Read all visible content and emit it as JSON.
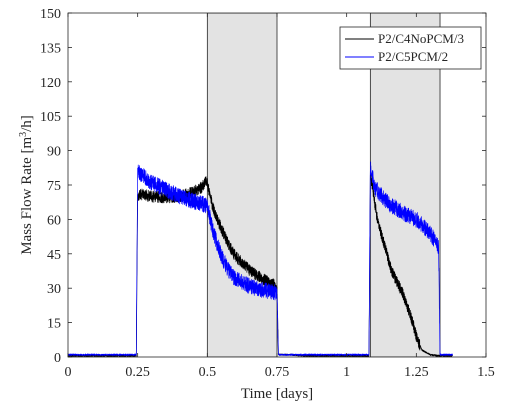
{
  "chart_data": {
    "type": "line",
    "title": "",
    "xlabel": "Time [days]",
    "ylabel_main": "Mass Flow Rate [m",
    "ylabel_sup": "3",
    "ylabel_end": "/h]",
    "xlim": [
      0,
      1.5
    ],
    "ylim": [
      0,
      150
    ],
    "x_ticks": [
      0,
      0.25,
      0.5,
      0.75,
      1,
      1.25,
      1.5
    ],
    "x_tick_labels": [
      "0",
      "0.25",
      "0.5",
      "0.75",
      "1",
      "1.25",
      "1.5"
    ],
    "y_ticks": [
      0,
      15,
      30,
      45,
      60,
      75,
      90,
      105,
      120,
      135,
      150
    ],
    "y_tick_labels": [
      "0",
      "15",
      "30",
      "45",
      "60",
      "75",
      "90",
      "105",
      "120",
      "135",
      "150"
    ],
    "grid": false,
    "legend_position": "top-right",
    "shaded_periods": [
      {
        "start": 0.5,
        "end": 0.75,
        "color": "#e3e3e3"
      },
      {
        "start": 1.085,
        "end": 1.335,
        "color": "#e3e3e3"
      }
    ],
    "series": [
      {
        "name": "P2/C4NoPCM/3",
        "color": "#000000",
        "noise": 2.5,
        "points": [
          [
            0,
            0.5
          ],
          [
            0.245,
            0.5
          ],
          [
            0.25,
            70
          ],
          [
            0.26,
            71
          ],
          [
            0.3,
            70
          ],
          [
            0.35,
            69.5
          ],
          [
            0.4,
            70
          ],
          [
            0.45,
            72
          ],
          [
            0.48,
            74
          ],
          [
            0.495,
            77
          ],
          [
            0.5,
            76
          ],
          [
            0.52,
            65
          ],
          [
            0.55,
            56
          ],
          [
            0.58,
            48
          ],
          [
            0.6,
            44
          ],
          [
            0.65,
            38
          ],
          [
            0.7,
            34
          ],
          [
            0.735,
            32
          ],
          [
            0.75,
            30
          ],
          [
            0.755,
            1
          ],
          [
            0.8,
            1
          ],
          [
            0.85,
            0.5
          ],
          [
            0.9,
            0.5
          ],
          [
            0.95,
            0.5
          ],
          [
            1.0,
            0.5
          ],
          [
            1.08,
            0.5
          ],
          [
            1.085,
            80
          ],
          [
            1.095,
            72
          ],
          [
            1.11,
            60
          ],
          [
            1.14,
            47
          ],
          [
            1.16,
            38
          ],
          [
            1.2,
            28
          ],
          [
            1.23,
            18
          ],
          [
            1.25,
            9
          ],
          [
            1.27,
            3
          ],
          [
            1.3,
            1
          ],
          [
            1.335,
            0.5
          ],
          [
            1.38,
            0.5
          ]
        ]
      },
      {
        "name": "P2/C5PCM/2",
        "color": "#0000ff",
        "noise": 3.5,
        "points": [
          [
            0,
            1
          ],
          [
            0.245,
            1
          ],
          [
            0.25,
            81
          ],
          [
            0.27,
            79
          ],
          [
            0.3,
            76
          ],
          [
            0.35,
            73
          ],
          [
            0.4,
            70
          ],
          [
            0.45,
            68
          ],
          [
            0.5,
            66
          ],
          [
            0.52,
            55
          ],
          [
            0.55,
            44
          ],
          [
            0.58,
            37
          ],
          [
            0.6,
            34
          ],
          [
            0.65,
            31
          ],
          [
            0.7,
            29
          ],
          [
            0.75,
            28
          ],
          [
            0.755,
            1
          ],
          [
            0.8,
            1
          ],
          [
            0.9,
            1
          ],
          [
            1.0,
            1
          ],
          [
            1.08,
            1
          ],
          [
            1.085,
            83
          ],
          [
            1.1,
            74
          ],
          [
            1.15,
            67
          ],
          [
            1.2,
            63
          ],
          [
            1.25,
            60
          ],
          [
            1.3,
            54
          ],
          [
            1.33,
            48
          ],
          [
            1.335,
            1
          ],
          [
            1.38,
            1
          ]
        ]
      }
    ]
  }
}
